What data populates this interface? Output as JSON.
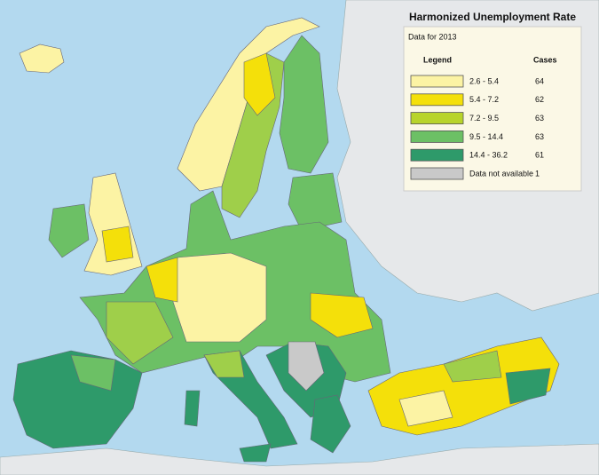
{
  "title": "Harmonized Unemployment Rate",
  "subtitle": "Data for 2013",
  "legend": {
    "heading": "Legend",
    "cases_heading": "Cases",
    "rows": [
      {
        "label": "2.6 - 5.4",
        "cases": 64,
        "color": "#fcf3a4"
      },
      {
        "label": "5.4 - 7.2",
        "cases": 62,
        "color": "#f4e00a"
      },
      {
        "label": "7.2 - 9.5",
        "cases": 63,
        "color": "#b8d42a"
      },
      {
        "label": "9.5 - 14.4",
        "cases": 63,
        "color": "#6cc065"
      },
      {
        "label": "14.4 - 36.2",
        "cases": 61,
        "color": "#2e9a6a"
      },
      {
        "label": "Data not available",
        "cases": 1,
        "color": "#c9c9c9"
      }
    ]
  }
}
